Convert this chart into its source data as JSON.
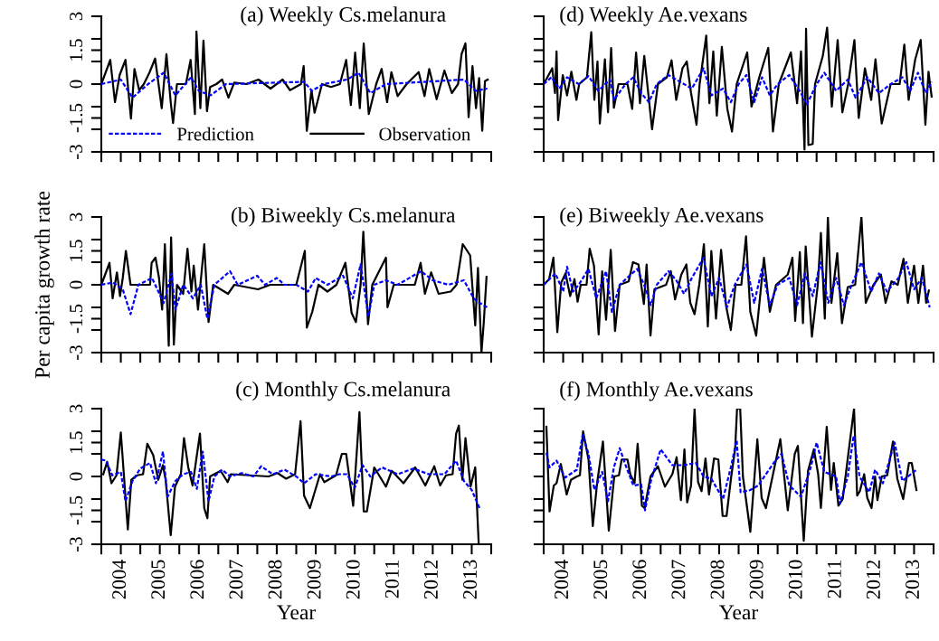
{
  "chart_data": [
    {
      "type": "line",
      "title": "(a) Weekly Cs.melanura",
      "ylim": [
        -3,
        3
      ],
      "xlim": [
        2003.5,
        2013.5
      ],
      "tick_labels": "y",
      "legend": "bottom left",
      "yticks": [
        -3,
        {
          "value": -2,
          "label": null
        },
        -1.5,
        {
          "value": -1,
          "label": null
        },
        0,
        {
          "value": 1,
          "label": null
        },
        1.5,
        {
          "value": 2,
          "label": null
        },
        3
      ],
      "xticks": [
        {
          "value": 2003.5,
          "label": null
        },
        2004,
        {
          "value": 2004.5,
          "label": null
        },
        2005,
        {
          "value": 2005.5,
          "label": null
        },
        2006,
        {
          "value": 2006.5,
          "label": null
        },
        2007,
        {
          "value": 2007.5,
          "label": null
        },
        2008,
        {
          "value": 2008.5,
          "label": null
        },
        2009,
        {
          "value": 2009.5,
          "label": null
        },
        2010,
        {
          "value": 2010.5,
          "label": null
        },
        2011,
        {
          "value": 2011.5,
          "label": null
        },
        2012,
        {
          "value": 2012.5,
          "label": null
        },
        2013,
        {
          "value": 2013.5,
          "label": null
        }
      ],
      "series": [
        {
          "name": "Prediction",
          "color": "#0000ff",
          "line_style": "dashed",
          "x": [
            2003.5,
            2004,
            2004.3,
            2004.7,
            2005.1,
            2005.4,
            2005.8,
            2006,
            2006.3,
            2006.7,
            2008.7,
            2008.9,
            2009.2,
            2009.8,
            2010.1,
            2010.4,
            2010.8,
            2012.8,
            2013.1,
            2013.4
          ],
          "values": [
            0,
            0.2,
            -0.6,
            0,
            0.5,
            -0.5,
            0.3,
            -0.3,
            -0.5,
            0,
            0.1,
            -0.3,
            0,
            0.2,
            0.5,
            -0.4,
            0,
            0.2,
            -0.3,
            -0.2
          ]
        },
        {
          "name": "Observation",
          "color": "#000000",
          "line_style": "solid",
          "x": [
            2003.5,
            2003.73,
            2003.85,
            2003.97,
            2004.12,
            2004.26,
            2004.35,
            2004.47,
            2004.59,
            2004.74,
            2004.88,
            2005.05,
            2005.17,
            2005.28,
            2005.34,
            2005.44,
            2005.67,
            2005.79,
            2005.9,
            2005.94,
            2006.04,
            2006.12,
            2006.21,
            2006.29,
            2006.45,
            2006.6,
            2006.76,
            2006.91,
            2007.22,
            2007.53,
            2007.84,
            2008.15,
            2008.34,
            2008.62,
            2008.69,
            2008.77,
            2008.89,
            2008.97,
            2009.16,
            2009.39,
            2009.62,
            2009.78,
            2009.9,
            2010.01,
            2010.13,
            2010.23,
            2010.36,
            2010.55,
            2010.69,
            2010.83,
            2010.94,
            2011.1,
            2011.33,
            2011.64,
            2011.79,
            2011.91,
            2012.1,
            2012.3,
            2012.49,
            2012.65,
            2012.74,
            2012.84,
            2012.92,
            2013.02,
            2013.11,
            2013.19,
            2013.27,
            2013.34,
            2013.41
          ],
          "values": [
            0,
            1.07,
            -0.8,
            0.4,
            1.07,
            -1.53,
            0.67,
            -0.27,
            0,
            0.53,
            1.13,
            -1.07,
            1.33,
            -0.8,
            -1.73,
            0,
            0,
            1.07,
            -1.33,
            2.33,
            -1.07,
            1.93,
            -1.2,
            -0.13,
            0,
            0.2,
            -0.6,
            0.07,
            0,
            0.2,
            -0.2,
            0.2,
            -0.27,
            0,
            0.8,
            -2.07,
            -0.27,
            -1.27,
            0,
            -0.13,
            0,
            1.07,
            -0.93,
            1.4,
            -1.07,
            1.8,
            -1.33,
            0,
            0.67,
            -0.8,
            0.53,
            -0.53,
            0,
            0.53,
            -0.53,
            0.67,
            -0.67,
            0.6,
            -0.4,
            0,
            1.33,
            1.8,
            -1.47,
            0.8,
            -1.07,
            0.27,
            -2.07,
            0.13,
            0.2
          ]
        }
      ]
    },
    {
      "type": "line",
      "title": "(b) Biweekly Cs.melanura",
      "ylabel": "Per capita growth rate",
      "ylim": [
        -3,
        3
      ],
      "xlim": [
        2003.5,
        2013.5
      ],
      "tick_labels": "y",
      "yticks": [
        -3,
        {
          "value": -2,
          "label": null
        },
        -1.5,
        {
          "value": -1,
          "label": null
        },
        0,
        {
          "value": 1,
          "label": null
        },
        1.5,
        {
          "value": 2,
          "label": null
        },
        3
      ],
      "xticks": [
        {
          "value": 2003.5,
          "label": null
        },
        2004,
        {
          "value": 2004.5,
          "label": null
        },
        2005,
        {
          "value": 2005.5,
          "label": null
        },
        2006,
        {
          "value": 2006.5,
          "label": null
        },
        2007,
        {
          "value": 2007.5,
          "label": null
        },
        2008,
        {
          "value": 2008.5,
          "label": null
        },
        2009,
        {
          "value": 2009.5,
          "label": null
        },
        2010,
        {
          "value": 2010.5,
          "label": null
        },
        2011,
        {
          "value": 2011.5,
          "label": null
        },
        2012,
        {
          "value": 2012.5,
          "label": null
        },
        2013,
        {
          "value": 2013.5,
          "label": null
        }
      ],
      "series": [
        {
          "color": "#0000ff",
          "line_style": "dashed",
          "x": [
            2003.5,
            2003.8,
            2004.05,
            2004.25,
            2004.45,
            2004.8,
            2005.1,
            2005.3,
            2005.4,
            2005.6,
            2005.85,
            2006.05,
            2006.22,
            2006.4,
            2006.8,
            2007,
            2007.5,
            2007.7,
            2008,
            2008.2,
            2008.5,
            2008.8,
            2009,
            2009.3,
            2009.7,
            2009.95,
            2010.15,
            2010.35,
            2010.5,
            2010.8,
            2011.1,
            2011.7,
            2012,
            2012.4,
            2012.8,
            2013.05,
            2013.2,
            2013.4
          ],
          "values": [
            0,
            0.1,
            -0.2,
            -1.3,
            0,
            0.3,
            -0.8,
            0.5,
            -1.1,
            0,
            -0.6,
            0,
            -1.5,
            0,
            0.6,
            0,
            0.4,
            0,
            0.3,
            0,
            0,
            -0.3,
            0.3,
            0,
            0.4,
            -0.6,
            0.9,
            -1.4,
            0,
            0.2,
            0,
            0.6,
            0.2,
            0,
            0.2,
            -0.6,
            -0.8,
            -1.0
          ]
        },
        {
          "color": "#000000",
          "line_style": "solid",
          "x": [
            2003.5,
            2003.71,
            2003.79,
            2003.9,
            2003.98,
            2004.05,
            2004.13,
            2004.25,
            2004.75,
            2004.79,
            2004.89,
            2004.98,
            2005.06,
            2005.13,
            2005.23,
            2005.29,
            2005.36,
            2005.44,
            2005.6,
            2005.71,
            2005.81,
            2005.87,
            2005.98,
            2006.14,
            2006.25,
            2006.37,
            2006.75,
            2006.91,
            2007.52,
            2007.83,
            2008.5,
            2008.72,
            2008.77,
            2008.91,
            2009.07,
            2009.3,
            2009.53,
            2009.76,
            2009.92,
            2010.03,
            2010.15,
            2010.22,
            2010.34,
            2010.45,
            2010.8,
            2010.84,
            2011,
            2011.54,
            2011.69,
            2011.8,
            2011.96,
            2012.15,
            2012.46,
            2012.61,
            2012.77,
            2012.96,
            2013.09,
            2013.16,
            2013.25,
            2013.31,
            2013.38
          ],
          "values": [
            0,
            0.97,
            -0.6,
            0.55,
            -0.5,
            0.3,
            1.5,
            0,
            0,
            0.97,
            1.2,
            0.3,
            -1.1,
            1.8,
            -2.7,
            2.1,
            -2.65,
            0,
            -0.4,
            1.6,
            -0.3,
            0.85,
            -1.1,
            1.8,
            -1.65,
            0,
            -0.4,
            0,
            -0.2,
            0,
            0,
            1.5,
            -1.9,
            -1.2,
            0,
            -0.3,
            0,
            0.97,
            -1.25,
            -1.65,
            0,
            2.35,
            -1.75,
            0,
            1.2,
            -1.0,
            0,
            0,
            0.97,
            -0.4,
            0.55,
            -0.4,
            -0.3,
            0,
            1.8,
            1.3,
            -1.8,
            0.75,
            -3,
            -1.65,
            0.35
          ]
        }
      ]
    },
    {
      "type": "line",
      "title": "(c) Monthly Cs.melanura",
      "xlabel": "Year",
      "ylim": [
        -3,
        3
      ],
      "xlim": [
        2003.5,
        2013.5
      ],
      "yticks": [
        -3,
        {
          "value": -2,
          "label": null
        },
        -1.5,
        {
          "value": -1,
          "label": null
        },
        0,
        {
          "value": 1,
          "label": null
        },
        1.5,
        {
          "value": 2,
          "label": null
        },
        3
      ],
      "xticks": [
        {
          "value": 2003.5,
          "label": null
        },
        2004,
        {
          "value": 2004.5,
          "label": null
        },
        2005,
        {
          "value": 2005.5,
          "label": null
        },
        2006,
        {
          "value": 2006.5,
          "label": null
        },
        2007,
        {
          "value": 2007.5,
          "label": null
        },
        2008,
        {
          "value": 2008.5,
          "label": null
        },
        2009,
        {
          "value": 2009.5,
          "label": null
        },
        2010,
        {
          "value": 2010.5,
          "label": null
        },
        2011,
        {
          "value": 2011.5,
          "label": null
        },
        2012,
        {
          "value": 2012.5,
          "label": null
        },
        2013,
        {
          "value": 2013.5,
          "label": null
        }
      ],
      "series": [
        {
          "color": "#0000ff",
          "line_style": "dashed",
          "x": [
            2003.5,
            2003.62,
            2003.78,
            2004,
            2004.12,
            2004.3,
            2004.5,
            2004.75,
            2004.9,
            2005.08,
            2005.2,
            2005.4,
            2005.6,
            2005.8,
            2005.95,
            2006.1,
            2006.25,
            2006.4,
            2006.6,
            2006.8,
            2007.1,
            2007.4,
            2007.6,
            2007.9,
            2008.2,
            2008.5,
            2008.7,
            2009,
            2009.4,
            2009.6,
            2009.8,
            2010,
            2010.2,
            2010.4,
            2010.7,
            2011.1,
            2011.5,
            2011.9,
            2012.3,
            2012.6,
            2012.8,
            2013,
            2013.2
          ],
          "values": [
            0.75,
            0.7,
            0.05,
            0.2,
            -1.1,
            -0.2,
            0.35,
            0.6,
            -0.3,
            1.1,
            -0.9,
            -0.2,
            0.1,
            0.2,
            -0.55,
            1.1,
            -1.1,
            0,
            0.3,
            0,
            0.15,
            0,
            0.45,
            0.1,
            0.3,
            0,
            -0.3,
            0.1,
            0,
            0.1,
            0.1,
            -0.5,
            0.5,
            0,
            0.4,
            0.1,
            0.35,
            0.1,
            0.1,
            0.7,
            -0.2,
            -0.6,
            -1.4
          ]
        },
        {
          "color": "#000000",
          "line_style": "solid",
          "x": [
            2003.55,
            2003.65,
            2003.76,
            2003.89,
            2004,
            2004.18,
            2004.27,
            2004.42,
            2004.57,
            2004.68,
            2004.83,
            2004.96,
            2005.08,
            2005.15,
            2005.28,
            2005.39,
            2005.54,
            2005.62,
            2005.73,
            2005.84,
            2006.03,
            2006.14,
            2006.22,
            2006.29,
            2006.56,
            2006.74,
            2006.82,
            2007.79,
            2008.02,
            2008.24,
            2008.47,
            2008.61,
            2008.7,
            2008.85,
            2009.11,
            2009.22,
            2009.52,
            2009.67,
            2009.78,
            2009.96,
            2010.12,
            2010.23,
            2010.31,
            2010.5,
            2010.8,
            2010.95,
            2011.25,
            2011.55,
            2011.81,
            2012.04,
            2012.19,
            2012.34,
            2012.51,
            2012.6,
            2012.67,
            2012.76,
            2012.84,
            2012.97,
            2013.09,
            2013.18
          ],
          "values": [
            0.1,
            0.65,
            -0.3,
            0.05,
            1.95,
            -2.35,
            -0.15,
            0.05,
            0.1,
            1.45,
            0.95,
            -0.15,
            0.5,
            -0.15,
            -2.6,
            -0.45,
            0.1,
            1.7,
            0.4,
            -0.4,
            1.9,
            -1.4,
            -1.85,
            0,
            0.25,
            -0.25,
            0.1,
            0,
            0.15,
            -0.1,
            0.1,
            2.45,
            -0.85,
            -1.4,
            0.1,
            -0.25,
            0.05,
            1.0,
            1.0,
            -1.3,
            2.85,
            -1.55,
            -1.55,
            0.4,
            -0.45,
            0.25,
            -0.3,
            0.4,
            -0.4,
            0.45,
            -0.4,
            0.05,
            0.1,
            1.9,
            2.25,
            -0.15,
            1.7,
            -0.45,
            0.4,
            -3
          ]
        }
      ]
    },
    {
      "type": "line",
      "title": "(d) Weekly Ae.vexans",
      "ylim": [
        -3,
        3
      ],
      "xlim": [
        2003.5,
        2013.5
      ],
      "tick_labels": false,
      "yticks": [
        -3,
        {
          "value": -2,
          "label": null
        },
        -1.5,
        {
          "value": -1,
          "label": null
        },
        0,
        {
          "value": 1,
          "label": null
        },
        1.5,
        {
          "value": 2,
          "label": null
        },
        3
      ],
      "xticks": [
        {
          "value": 2003.5,
          "label": null
        },
        2004,
        {
          "value": 2004.5,
          "label": null
        },
        2005,
        {
          "value": 2005.5,
          "label": null
        },
        2006,
        {
          "value": 2006.5,
          "label": null
        },
        2007,
        {
          "value": 2007.5,
          "label": null
        },
        2008,
        {
          "value": 2008.5,
          "label": null
        },
        2009,
        {
          "value": 2009.5,
          "label": null
        },
        2010,
        {
          "value": 2010.5,
          "label": null
        },
        2011,
        {
          "value": 2011.5,
          "label": null
        },
        2012,
        {
          "value": 2012.5,
          "label": null
        },
        2013,
        {
          "value": 2013.5,
          "label": null
        }
      ],
      "series": [
        {
          "color": "#0000ff",
          "line_style": "dashed",
          "x": [
            2003.5,
            2003.7,
            2003.9,
            2004.1,
            2004.4,
            2004.65,
            2004.9,
            2005.2,
            2005.3,
            2005.6,
            2005.8,
            2006,
            2006.2,
            2006.4,
            2006.7,
            2007,
            2007.3,
            2007.6,
            2007.8,
            2008.1,
            2008.3,
            2008.5,
            2008.7,
            2008.9,
            2009.1,
            2009.3,
            2009.5,
            2009.8,
            2010.1,
            2010.25,
            2010.5,
            2010.7,
            2011,
            2011.3,
            2011.5,
            2011.8,
            2012.1,
            2012.4,
            2012.7,
            2012.9,
            2013.1,
            2013.3,
            2013.45
          ],
          "values": [
            0,
            0.3,
            -0.2,
            0.3,
            0,
            0.35,
            -0.3,
            0.2,
            -0.7,
            0,
            0.3,
            -0.4,
            -0.8,
            0,
            0.4,
            0.1,
            -0.2,
            0.7,
            -0.5,
            -0.2,
            -0.8,
            0,
            0.4,
            -0.8,
            0.3,
            -0.5,
            0,
            0.4,
            -0.4,
            -0.9,
            0,
            0.5,
            -0.3,
            0.2,
            -0.6,
            0.3,
            -0.4,
            0,
            0.3,
            -0.3,
            0.5,
            -0.4,
            0.1
          ]
        },
        {
          "color": "#000000",
          "line_style": "solid",
          "x": [
            2003.5,
            2003.72,
            2003.79,
            2003.83,
            2003.87,
            2003.99,
            2004.1,
            2004.21,
            2004.34,
            2004.41,
            2004.61,
            2004.72,
            2004.8,
            2004.88,
            2004.94,
            2005.07,
            2005.15,
            2005.23,
            2005.3,
            2005.42,
            2005.65,
            2005.77,
            2005.87,
            2005.97,
            2006.08,
            2006.2,
            2006.28,
            2006.43,
            2006.66,
            2006.78,
            2006.9,
            2007.06,
            2007.17,
            2007.28,
            2007.42,
            2007.5,
            2007.67,
            2007.75,
            2007.85,
            2007.94,
            2008.07,
            2008.21,
            2008.33,
            2008.45,
            2008.72,
            2008.83,
            2009.03,
            2009.26,
            2009.38,
            2009.53,
            2009.84,
            2010,
            2010.1,
            2010.19,
            2010.23,
            2010.29,
            2010.4,
            2010.46,
            2010.66,
            2010.77,
            2010.89,
            2011.04,
            2011.16,
            2011.31,
            2011.47,
            2011.58,
            2011.74,
            2011.9,
            2012.01,
            2012.17,
            2012.4,
            2012.63,
            2012.75,
            2012.86,
            2013.03,
            2013.17,
            2013.29,
            2013.37,
            2013.45
          ],
          "values": [
            0,
            0.7,
            -0.4,
            1.45,
            -1.6,
            0.4,
            -0.5,
            0.55,
            -0.7,
            0,
            0.3,
            2.3,
            -0.7,
            1.0,
            -1.75,
            1.1,
            -1.25,
            1.6,
            -1.05,
            0,
            0,
            -1.1,
            1.4,
            -0.85,
            1.25,
            -0.7,
            -2.0,
            0,
            0.3,
            1.05,
            -0.7,
            0.7,
            1.0,
            -0.4,
            -1.8,
            0,
            2.15,
            -0.85,
            1.45,
            -1.4,
            1.65,
            -1.1,
            -2.1,
            0,
            1.4,
            -1.0,
            0.3,
            1.6,
            -2.1,
            0,
            1.4,
            -0.85,
            1.45,
            -2.9,
            2.45,
            -2.7,
            -2.65,
            0,
            1.25,
            2.5,
            -1.0,
            1.95,
            -1.25,
            0,
            1.95,
            -1.5,
            0.7,
            -0.7,
            1.1,
            -1.75,
            0,
            0,
            1.75,
            -0.7,
            1.1,
            1.95,
            -1.8,
            0.55,
            -0.55
          ]
        }
      ]
    },
    {
      "type": "line",
      "title": "(e) Biweekly Ae.vexans",
      "ylim": [
        -3,
        3
      ],
      "xlim": [
        2003.5,
        2013.5
      ],
      "tick_labels": false,
      "yticks": [
        -3,
        {
          "value": -2,
          "label": null
        },
        -1.5,
        {
          "value": -1,
          "label": null
        },
        0,
        {
          "value": 1,
          "label": null
        },
        1.5,
        {
          "value": 2,
          "label": null
        },
        3
      ],
      "xticks": [
        {
          "value": 2003.5,
          "label": null
        },
        2004,
        {
          "value": 2004.5,
          "label": null
        },
        2005,
        {
          "value": 2005.5,
          "label": null
        },
        2006,
        {
          "value": 2006.5,
          "label": null
        },
        2007,
        {
          "value": 2007.5,
          "label": null
        },
        2008,
        {
          "value": 2008.5,
          "label": null
        },
        2009,
        {
          "value": 2009.5,
          "label": null
        },
        2010,
        {
          "value": 2010.5,
          "label": null
        },
        2011,
        {
          "value": 2011.5,
          "label": null
        },
        2012,
        {
          "value": 2012.5,
          "label": null
        },
        2013,
        {
          "value": 2013.5,
          "label": null
        }
      ],
      "series": [
        {
          "color": "#0000ff",
          "line_style": "dashed",
          "x": [
            2003.5,
            2003.8,
            2004,
            2004.1,
            2004.25,
            2004.4,
            2004.65,
            2004.85,
            2005.1,
            2005.25,
            2005.45,
            2005.7,
            2005.9,
            2006.1,
            2006.25,
            2006.4,
            2006.7,
            2006.9,
            2007.1,
            2007.3,
            2007.6,
            2007.8,
            2008,
            2008.2,
            2008.4,
            2008.7,
            2008.9,
            2009.1,
            2009.3,
            2009.5,
            2009.8,
            2010,
            2010.2,
            2010.4,
            2010.6,
            2010.8,
            2011,
            2011.2,
            2011.4,
            2011.65,
            2011.9,
            2012.1,
            2012.3,
            2012.6,
            2012.8,
            2013,
            2013.2,
            2013.4
          ],
          "values": [
            0,
            0.5,
            -0.3,
            0.8,
            -0.3,
            0,
            0.7,
            -0.6,
            0.6,
            -1.2,
            0,
            0.4,
            0.7,
            -0.1,
            -0.9,
            0,
            0.6,
            0.2,
            -0.4,
            0.3,
            1.2,
            -0.5,
            0.3,
            -1.0,
            0,
            0.9,
            -0.8,
            0.7,
            -0.9,
            0,
            0.3,
            -0.9,
            0.5,
            -0.5,
            1.0,
            -0.8,
            0.3,
            -0.9,
            0,
            1.0,
            -0.3,
            0.5,
            -0.3,
            0.3,
            1.0,
            -0.2,
            0.3,
            -1.0
          ]
        },
        {
          "color": "#000000",
          "line_style": "solid",
          "x": [
            2003.5,
            2003.64,
            2003.75,
            2003.85,
            2003.95,
            2004.06,
            2004.18,
            2004.29,
            2004.37,
            2004.45,
            2004.6,
            2004.68,
            2004.79,
            2004.91,
            2005,
            2005.1,
            2005.22,
            2005.33,
            2005.45,
            2005.68,
            2005.79,
            2005.93,
            2006.07,
            2006.14,
            2006.24,
            2006.34,
            2006.64,
            2006.76,
            2006.87,
            2007.03,
            2007.16,
            2007.26,
            2007.37,
            2007.49,
            2007.61,
            2007.71,
            2007.8,
            2007.92,
            2008.05,
            2008.18,
            2008.3,
            2008.42,
            2008.57,
            2008.69,
            2008.8,
            2008.95,
            2009.15,
            2009.3,
            2009.46,
            2009.76,
            2009.88,
            2009.95,
            2010.07,
            2010.15,
            2010.22,
            2010.38,
            2010.53,
            2010.61,
            2010.71,
            2010.79,
            2010.88,
            2011.03,
            2011.15,
            2011.3,
            2011.49,
            2011.65,
            2011.76,
            2011.96,
            2012.15,
            2012.27,
            2012.42,
            2012.58,
            2012.73,
            2012.84,
            2013,
            2013.11,
            2013.23,
            2013.31,
            2013.38
          ],
          "values": [
            0,
            0.25,
            1.2,
            -2.1,
            0.1,
            0.5,
            -0.5,
            0.25,
            -0.75,
            0,
            0,
            1.6,
            0.85,
            -2.2,
            0.6,
            -1.55,
            1.55,
            -2.05,
            0,
            0.15,
            1.0,
            0.9,
            -0.85,
            0.9,
            -2.25,
            -0.2,
            0,
            0.6,
            -0.65,
            0.45,
            0.9,
            -0.8,
            -1.3,
            0,
            1.8,
            -1.85,
            1.5,
            -1.5,
            1.55,
            -0.95,
            -2.0,
            0,
            0,
            2.15,
            -1.2,
            -2.25,
            1.2,
            -1.2,
            0,
            0.45,
            1.2,
            -1.6,
            1.45,
            -1.7,
            1.7,
            -2.3,
            0,
            2.3,
            -1.5,
            3,
            -0.8,
            1.4,
            -1.7,
            -0.1,
            0,
            3,
            -0.8,
            0,
            0.45,
            -0.8,
            0.15,
            0,
            1.15,
            -0.8,
            0.85,
            -0.8,
            0.85,
            -0.8,
            -0.25
          ]
        }
      ]
    },
    {
      "type": "line",
      "title": "(f) Monthly Ae.vexans",
      "xlabel": "Year",
      "ylim": [
        -3,
        3
      ],
      "xlim": [
        2003.5,
        2013.5
      ],
      "tick_labels": "x",
      "yticks": [
        -3,
        {
          "value": -2,
          "label": null
        },
        -1.5,
        {
          "value": -1,
          "label": null
        },
        0,
        {
          "value": 1,
          "label": null
        },
        1.5,
        {
          "value": 2,
          "label": null
        },
        3
      ],
      "xticks": [
        {
          "value": 2003.5,
          "label": null
        },
        2004,
        {
          "value": 2004.5,
          "label": null
        },
        2005,
        {
          "value": 2005.5,
          "label": null
        },
        2006,
        {
          "value": 2006.5,
          "label": null
        },
        2007,
        {
          "value": 2007.5,
          "label": null
        },
        2008,
        {
          "value": 2008.5,
          "label": null
        },
        2009,
        {
          "value": 2009.5,
          "label": null
        },
        2010,
        {
          "value": 2010.5,
          "label": null
        },
        2011,
        {
          "value": 2011.5,
          "label": null
        },
        2012,
        {
          "value": 2012.5,
          "label": null
        },
        2013,
        {
          "value": 2013.5,
          "label": null
        }
      ],
      "series": [
        {
          "color": "#0000ff",
          "line_style": "dashed",
          "x": [
            2003.57,
            2003.65,
            2003.83,
            2004.05,
            2004.35,
            2004.5,
            2004.65,
            2004.8,
            2005,
            2005.15,
            2005.3,
            2005.45,
            2005.6,
            2005.8,
            2006,
            2006.1,
            2006.25,
            2006.5,
            2006.8,
            2007.1,
            2007.4,
            2007.6,
            2007.8,
            2008.1,
            2008.3,
            2008.45,
            2008.55,
            2008.8,
            2009,
            2009.4,
            2009.6,
            2009.8,
            2010.1,
            2010.35,
            2010.5,
            2010.7,
            2011,
            2011.1,
            2011.3,
            2011.45,
            2011.6,
            2011.85,
            2012,
            2012.2,
            2012.5,
            2012.7,
            2013.06
          ],
          "values": [
            1.05,
            0.4,
            0.7,
            -0.05,
            0.3,
            1.85,
            1.0,
            -0.6,
            0.2,
            -1.1,
            0.4,
            1.25,
            0.5,
            -0.4,
            -0.35,
            -1.5,
            -0.2,
            1.2,
            0.5,
            0.5,
            0.6,
            0,
            -0.1,
            -1.0,
            0.4,
            1.6,
            -0.7,
            -0.6,
            -0.4,
            0.6,
            1.0,
            -0.4,
            -0.9,
            0.4,
            1.5,
            0.2,
            0,
            -1.2,
            0,
            1.8,
            0,
            -0.7,
            0.3,
            -0.3,
            1.5,
            -0.2,
            0.3
          ]
        },
        {
          "color": "#000000",
          "line_style": "solid",
          "x": [
            2003.57,
            2003.65,
            2003.76,
            2003.83,
            2003.94,
            2004.09,
            2004.2,
            2004.35,
            2004.43,
            2004.51,
            2004.65,
            2004.76,
            2004.87,
            2005.02,
            2005.17,
            2005.31,
            2005.43,
            2005.5,
            2005.65,
            2005.72,
            2005.83,
            2005.91,
            2006.02,
            2006.09,
            2006.24,
            2006.43,
            2006.61,
            2006.8,
            2006.91,
            2007.02,
            2007.11,
            2007.18,
            2007.28,
            2007.37,
            2007.46,
            2007.55,
            2007.65,
            2007.74,
            2007.87,
            2007.98,
            2008.09,
            2008.19,
            2008.31,
            2008.41,
            2008.46,
            2008.54,
            2008.61,
            2008.8,
            2008.98,
            2009.09,
            2009.2,
            2009.57,
            2009.76,
            2009.94,
            2010.02,
            2010.17,
            2010.28,
            2010.43,
            2010.54,
            2010.61,
            2010.76,
            2010.87,
            2010.94,
            2011.06,
            2011.17,
            2011.31,
            2011.46,
            2011.54,
            2011.61,
            2011.72,
            2011.8,
            2011.91,
            2012,
            2012.06,
            2012.17,
            2012.31,
            2012.46,
            2012.57,
            2012.72,
            2012.87,
            2012.94,
            2013.06
          ],
          "values": [
            2.2,
            -1.55,
            -0.4,
            -0.3,
            0.55,
            -0.8,
            -0.15,
            0,
            0.05,
            2.0,
            0.75,
            -2.2,
            -0.3,
            1.55,
            -2.4,
            0,
            0.05,
            0.75,
            0.75,
            0.1,
            -0.3,
            1.45,
            -1.3,
            -1.4,
            0,
            0.45,
            -0.45,
            0.1,
            0.85,
            -1.05,
            1.2,
            -1.15,
            -0.4,
            3,
            -0.25,
            -0.65,
            0.8,
            -0.8,
            0.8,
            0.75,
            -1.75,
            -1.75,
            0,
            1.2,
            3,
            3,
            0,
            -2.45,
            1.65,
            -0.95,
            -1.4,
            1.65,
            -1.5,
            1.0,
            1.35,
            -2.85,
            0.25,
            1.2,
            0.1,
            -1.4,
            2.2,
            -0.6,
            0.6,
            -1.3,
            -1.0,
            0.95,
            3,
            -0.85,
            -0.65,
            0.1,
            -0.95,
            -1.4,
            0,
            -1.05,
            0,
            0.05,
            1.55,
            -0.1,
            -1.0,
            0.6,
            0.6,
            -0.6
          ]
        }
      ]
    }
  ]
}
